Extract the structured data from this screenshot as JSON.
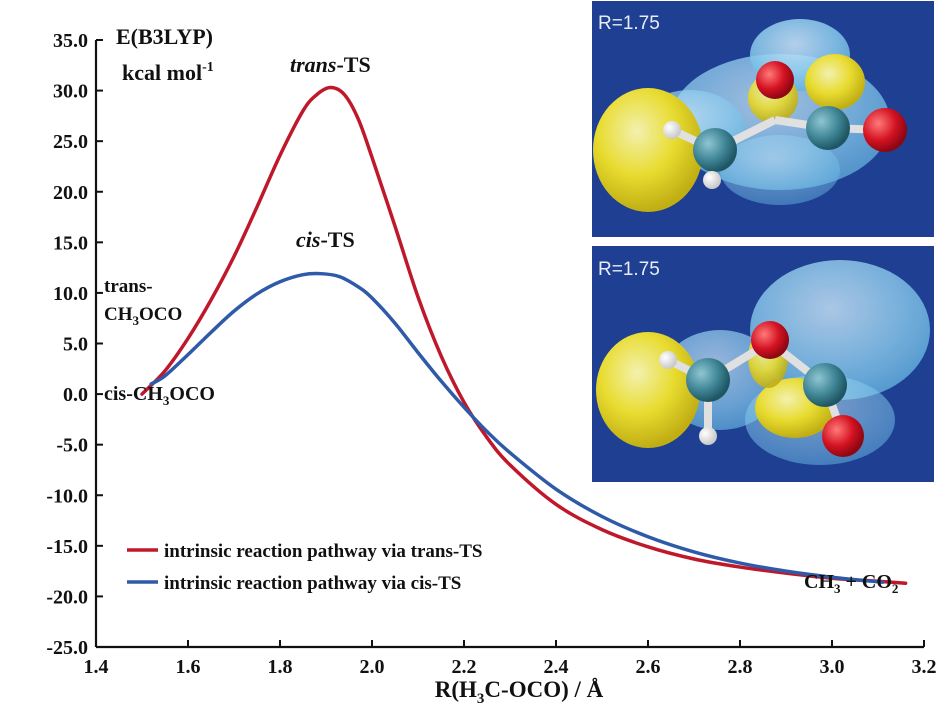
{
  "chart_data": {
    "type": "line",
    "ylabel_line1": "E(B3LYP)",
    "ylabel_line2_main": "kcal mol",
    "ylabel_line2_sup": "-1",
    "xlabel": {
      "main1": "R(H",
      "sub": "3",
      "main2": "C-OCO) / Å"
    },
    "xlim": [
      1.4,
      3.2
    ],
    "ylim": [
      -25.0,
      35.0
    ],
    "x_ticks": [
      "1.4",
      "1.6",
      "1.8",
      "2.0",
      "2.2",
      "2.4",
      "2.6",
      "2.8",
      "3.0",
      "3.2"
    ],
    "y_ticks": [
      "35.0",
      "30.0",
      "25.0",
      "20.0",
      "15.0",
      "10.0",
      "5.0",
      "0.0",
      "-5.0",
      "-10.0",
      "-15.0",
      "-20.0",
      "-25.0"
    ],
    "series": [
      {
        "name": "intrinsic reaction pathway via trans-TS",
        "color": "#c0182b",
        "x": [
          1.5,
          1.55,
          1.6,
          1.65,
          1.7,
          1.75,
          1.8,
          1.85,
          1.88,
          1.91,
          1.94,
          1.97,
          2.0,
          2.05,
          2.1,
          2.15,
          2.2,
          2.25,
          2.3,
          2.4,
          2.5,
          2.6,
          2.7,
          2.8,
          2.9,
          3.0,
          3.1,
          3.16
        ],
        "y": [
          0.0,
          2.3,
          5.5,
          9.3,
          13.6,
          18.5,
          23.6,
          28.0,
          29.6,
          30.3,
          29.6,
          27.2,
          23.4,
          16.6,
          9.6,
          3.8,
          -0.8,
          -4.3,
          -7.0,
          -10.9,
          -13.4,
          -15.1,
          -16.3,
          -17.1,
          -17.7,
          -18.2,
          -18.5,
          -18.7
        ]
      },
      {
        "name": "intrinsic reaction pathway via cis-TS",
        "color": "#2e5aa8",
        "x": [
          1.52,
          1.55,
          1.6,
          1.65,
          1.7,
          1.75,
          1.8,
          1.85,
          1.89,
          1.93,
          1.97,
          2.0,
          2.05,
          2.1,
          2.15,
          2.2,
          2.25,
          2.3,
          2.4,
          2.5,
          2.6,
          2.7,
          2.8,
          2.9,
          3.0,
          3.11
        ],
        "y": [
          1.0,
          1.8,
          3.9,
          6.1,
          8.2,
          9.9,
          11.1,
          11.8,
          11.9,
          11.6,
          10.6,
          9.5,
          7.0,
          4.1,
          1.3,
          -1.3,
          -3.7,
          -5.8,
          -9.4,
          -12.1,
          -14.1,
          -15.6,
          -16.7,
          -17.5,
          -18.1,
          -18.6
        ]
      }
    ],
    "annotations": {
      "trans_ts": {
        "italic": "trans",
        "rest": "-TS"
      },
      "cis_ts": {
        "italic": "cis",
        "rest": "-TS"
      },
      "trans_reactant": {
        "line1": "trans-",
        "line2a": "CH",
        "line2sub": "3",
        "line2b": "OCO"
      },
      "cis_reactant": {
        "a": "cis-CH",
        "sub": "3",
        "b": "OCO"
      },
      "product": {
        "a": "CH",
        "sub1": "3",
        "b": " + CO",
        "sub2": "2"
      }
    },
    "legend_position": "bottom-left",
    "grid": false
  },
  "insets": [
    {
      "label": "R=1.75",
      "background": "#1f3f93"
    },
    {
      "label": "R=1.75",
      "background": "#1f3f93"
    }
  ]
}
